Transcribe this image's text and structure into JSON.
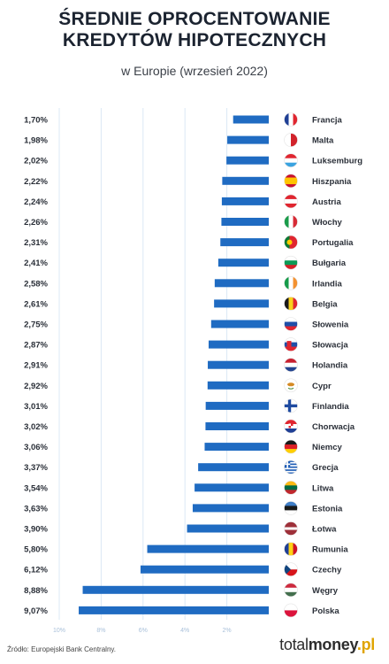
{
  "title_line1": "ŚREDNIE OPROCENTOWANIE",
  "title_line2": "KREDYTÓW HIPOTECZNYCH",
  "subtitle": "w Europie (wrzesień 2022)",
  "source": "Źródło: Europejski Bank Centralny.",
  "brand": {
    "part1": "total",
    "part2": "money",
    "part3": ".pl"
  },
  "colors": {
    "bar": "#1f6bc2",
    "grid": "#dbe8f5",
    "tick": "#a9c0da"
  },
  "chart_data": {
    "type": "bar",
    "orientation": "horizontal",
    "x_direction": "reversed",
    "xlim": [
      0,
      10
    ],
    "x_ticks": [
      "10%",
      "8%",
      "6%",
      "4%",
      "2%"
    ],
    "x_tick_values": [
      10,
      8,
      6,
      4,
      2
    ],
    "grid": true,
    "categories": [
      "Francja",
      "Malta",
      "Luksemburg",
      "Hiszpania",
      "Austria",
      "Włochy",
      "Portugalia",
      "Bułgaria",
      "Irlandia",
      "Belgia",
      "Słowenia",
      "Słowacja",
      "Holandia",
      "Cypr",
      "Finlandia",
      "Chorwacja",
      "Niemcy",
      "Grecja",
      "Litwa",
      "Estonia",
      "Łotwa",
      "Rumunia",
      "Czechy",
      "Węgry",
      "Polska"
    ],
    "values": [
      1.7,
      1.98,
      2.02,
      2.22,
      2.24,
      2.26,
      2.31,
      2.41,
      2.58,
      2.61,
      2.75,
      2.87,
      2.91,
      2.92,
      3.01,
      3.02,
      3.06,
      3.37,
      3.54,
      3.63,
      3.9,
      5.8,
      6.12,
      8.88,
      9.07
    ],
    "value_labels": [
      "1,70%",
      "1,98%",
      "2,02%",
      "2,22%",
      "2,24%",
      "2,26%",
      "2,31%",
      "2,41%",
      "2,58%",
      "2,61%",
      "2,75%",
      "2,87%",
      "2,91%",
      "2,92%",
      "3,01%",
      "3,02%",
      "3,06%",
      "3,37%",
      "3,54%",
      "3,63%",
      "3,90%",
      "5,80%",
      "6,12%",
      "8,88%",
      "9,07%"
    ],
    "flag_icons": [
      "france-flag-icon",
      "malta-flag-icon",
      "luxembourg-flag-icon",
      "spain-flag-icon",
      "austria-flag-icon",
      "italy-flag-icon",
      "portugal-flag-icon",
      "bulgaria-flag-icon",
      "ireland-flag-icon",
      "belgium-flag-icon",
      "slovenia-flag-icon",
      "slovakia-flag-icon",
      "netherlands-flag-icon",
      "cyprus-flag-icon",
      "finland-flag-icon",
      "croatia-flag-icon",
      "germany-flag-icon",
      "greece-flag-icon",
      "lithuania-flag-icon",
      "estonia-flag-icon",
      "latvia-flag-icon",
      "romania-flag-icon",
      "czechia-flag-icon",
      "hungary-flag-icon",
      "poland-flag-icon"
    ]
  }
}
